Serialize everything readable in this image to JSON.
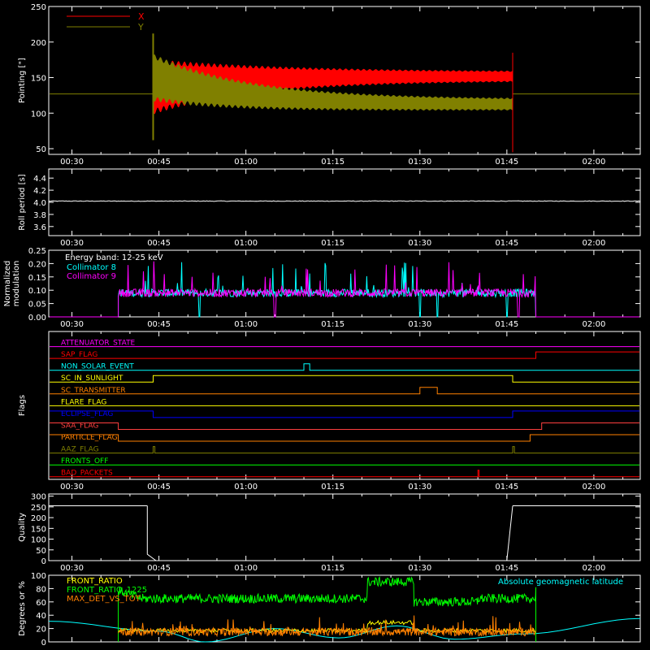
{
  "colors": {
    "background": "#000000",
    "axis": "#ffffff",
    "x_series": "#ff0000",
    "y_series": "#808000",
    "collimator8": "#00ffff",
    "collimator9": "#ff00ff",
    "front_ratio": "#ffff00",
    "front_ratio_1225": "#00ff00",
    "max_det_vs_tot": "#ff8000",
    "geomag_latitude": "#00ffff"
  },
  "chart_data": [
    {
      "id": "pointing",
      "type": "line",
      "ylabel": "Pointing [\"]",
      "ylim": [
        42,
        250
      ],
      "yticks": [
        50,
        100,
        150,
        200,
        250
      ],
      "time_range": [
        "00:26",
        "02:08"
      ],
      "time_ticks": [
        "00:30",
        "00:45",
        "01:00",
        "01:15",
        "01:30",
        "01:45",
        "02:00"
      ],
      "legend": [
        {
          "name": "X",
          "color": "#ff0000"
        },
        {
          "name": "Y",
          "color": "#808000"
        }
      ],
      "baseline": 127,
      "oscillation_start": "00:44",
      "oscillation_end": "01:46",
      "series": [
        {
          "name": "X",
          "center_start": 137,
          "center_end": 152,
          "halfwidth_start": 70,
          "halfwidth_end": 12
        },
        {
          "name": "Y",
          "center_start": 150,
          "center_end": 112,
          "halfwidth_start": 60,
          "halfwidth_end": 14
        }
      ]
    },
    {
      "id": "roll",
      "type": "line",
      "ylabel": "Roll period [s]",
      "ylim": [
        3.45,
        4.55
      ],
      "yticks": [
        3.6,
        3.8,
        4.0,
        4.2,
        4.4
      ],
      "time_range": [
        "00:26",
        "02:08"
      ],
      "time_ticks": [
        "00:30",
        "00:45",
        "01:00",
        "01:15",
        "01:30",
        "01:45",
        "02:00"
      ],
      "value": 4.02
    },
    {
      "id": "modulation",
      "type": "line",
      "ylabel": "Normalized modulation",
      "ylim": [
        0,
        0.25
      ],
      "yticks": [
        0.0,
        0.05,
        0.1,
        0.15,
        0.2,
        0.25
      ],
      "time_range": [
        "00:26",
        "02:08"
      ],
      "time_ticks": [
        "00:30",
        "00:45",
        "01:00",
        "01:15",
        "01:30",
        "01:45",
        "02:00"
      ],
      "annotation": "Energy band: 12-25 keV",
      "legend": [
        {
          "name": "Collimator 8",
          "color": "#00ffff"
        },
        {
          "name": "Collimator 9",
          "color": "#ff00ff"
        }
      ],
      "active_start": "00:38",
      "active_end": "01:50",
      "mean": 0.09,
      "dropouts_c8": [
        "00:52",
        "01:30",
        "01:33",
        "01:45"
      ],
      "dropouts_c9": [
        "01:05",
        "01:47"
      ]
    },
    {
      "id": "flags",
      "type": "line",
      "ylabel": "Flags",
      "time_range": [
        "00:26",
        "02:08"
      ],
      "time_ticks": [
        "00:30",
        "00:45",
        "01:00",
        "01:15",
        "01:30",
        "01:45",
        "02:00"
      ],
      "flags": [
        {
          "name": "ATTENUATOR_STATE",
          "color": "#ff00ff",
          "high": []
        },
        {
          "name": "SAP_FLAG",
          "color": "#ff0000",
          "high": [
            [
              "01:50",
              "02:08"
            ]
          ]
        },
        {
          "name": "NON_SOLAR_EVENT",
          "color": "#00ffff",
          "high": [
            [
              "01:10",
              "01:11"
            ]
          ]
        },
        {
          "name": "SC_IN_SUNLIGHT",
          "color": "#ffff00",
          "high": [
            [
              "00:44",
              "01:46"
            ]
          ]
        },
        {
          "name": "SC_TRANSMITTER",
          "color": "#ff8000",
          "high": [
            [
              "01:30",
              "01:33"
            ]
          ]
        },
        {
          "name": "FLARE_FLAG",
          "color": "#ffff00",
          "high": []
        },
        {
          "name": "ECLIPSE_FLAG",
          "color": "#0000ff",
          "high": [
            [
              "00:26",
              "00:44"
            ],
            [
              "01:46",
              "02:08"
            ]
          ]
        },
        {
          "name": "SAA_FLAG",
          "color": "#ff4040",
          "high": [
            [
              "00:26",
              "00:38"
            ],
            [
              "01:51",
              "02:08"
            ]
          ]
        },
        {
          "name": "PARTICLE_FLAG",
          "color": "#ff8000",
          "high": [
            [
              "00:26",
              "00:38"
            ],
            [
              "01:49",
              "02:08"
            ]
          ]
        },
        {
          "name": "AAZ_FLAG",
          "color": "#808000",
          "high": [
            [
              "00:44",
              "00:44.3"
            ],
            [
              "01:46",
              "01:46.3"
            ]
          ]
        },
        {
          "name": "FRONTS_OFF",
          "color": "#00ff00",
          "high": []
        },
        {
          "name": "BAD_PACKETS",
          "color": "#ff0000",
          "high": [
            [
              "01:40",
              "01:40.2"
            ]
          ]
        }
      ]
    },
    {
      "id": "quality",
      "type": "line",
      "ylabel": "Quality",
      "ylim": [
        0,
        310
      ],
      "yticks": [
        0,
        50,
        100,
        150,
        200,
        250,
        300
      ],
      "time_range": [
        "00:26",
        "02:08"
      ],
      "time_ticks": [
        "00:30",
        "00:45",
        "01:00",
        "01:15",
        "01:30",
        "01:45",
        "02:00"
      ],
      "segments": [
        {
          "from": "00:26",
          "to": "00:43",
          "value": 255
        },
        {
          "from": "00:45",
          "to": "01:45",
          "value": 0
        },
        {
          "from": "01:46",
          "to": "02:08",
          "value": 255
        }
      ]
    },
    {
      "id": "ratios",
      "type": "line",
      "ylabel": "Degrees or %",
      "ylim": [
        0,
        100
      ],
      "yticks": [
        0,
        20,
        40,
        60,
        80,
        100
      ],
      "time_range": [
        "00:26",
        "02:08"
      ],
      "legend": [
        {
          "name": "FRONT_RATIO",
          "color": "#ffff00"
        },
        {
          "name": "FRONT_RATIO_1225",
          "color": "#00ff00"
        },
        {
          "name": "MAX_DET_VS_TOT",
          "color": "#ff8000"
        }
      ],
      "annotation": "Absolute geomagnetic latitude",
      "active_start": "00:38",
      "active_end": "01:50",
      "front_ratio_1225_levels": [
        {
          "from": "00:38",
          "to": "01:12",
          "value": 65
        },
        {
          "from": "01:12",
          "to": "01:21",
          "value": 65
        },
        {
          "from": "01:21",
          "to": "01:29",
          "value": 90
        },
        {
          "from": "01:29",
          "to": "01:40",
          "value": 60
        },
        {
          "from": "01:40",
          "to": "01:50",
          "value": 65
        }
      ],
      "front_ratio_mean": 17,
      "max_det_mean": 15,
      "geomag_latitude": [
        {
          "t": "00:26",
          "v": 31
        },
        {
          "t": "00:45",
          "v": 16
        },
        {
          "t": "00:53",
          "v": 0
        },
        {
          "t": "01:05",
          "v": 20
        },
        {
          "t": "01:16",
          "v": 6
        },
        {
          "t": "01:26",
          "v": 24
        },
        {
          "t": "01:36",
          "v": 4
        },
        {
          "t": "01:48",
          "v": 12
        },
        {
          "t": "02:08",
          "v": 35
        }
      ]
    }
  ]
}
